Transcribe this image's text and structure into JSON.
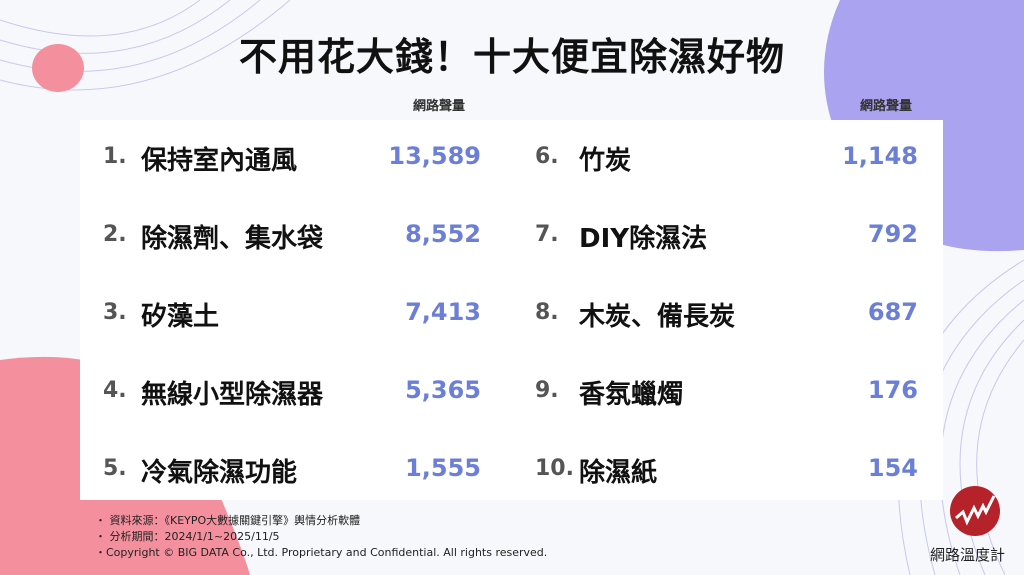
{
  "title": "不用花大錢！十大便宜除濕好物",
  "column_header": "網路聲量",
  "items": [
    {
      "rank": "1.",
      "name": "保持室內通風",
      "value": "13,589"
    },
    {
      "rank": "2.",
      "name": "除濕劑、集水袋",
      "value": "8,552"
    },
    {
      "rank": "3.",
      "name": "矽藻土",
      "value": "7,413"
    },
    {
      "rank": "4.",
      "name": "無線小型除濕器",
      "value": "5,365"
    },
    {
      "rank": "5.",
      "name": "冷氣除濕功能",
      "value": "1,555"
    },
    {
      "rank": "6.",
      "name": "竹炭",
      "value": "1,148"
    },
    {
      "rank": "7.",
      "name": "DIY除濕法",
      "value": "792"
    },
    {
      "rank": "8.",
      "name": "木炭、備長炭",
      "value": "687"
    },
    {
      "rank": "9.",
      "name": "香氛蠟燭",
      "value": "176"
    },
    {
      "rank": "10.",
      "name": "除濕紙",
      "value": "154"
    }
  ],
  "notes": [
    "・ 資料來源：《KEYPO大數據關鍵引擎》輿情分析軟體",
    "・ 分析期間：2024/1/1~2025/11/5",
    "・Copyright © BIG DATA Co., Ltd. Proprietary and Confidential. All rights reserved."
  ],
  "logo": {
    "text": "網路溫度計",
    "color": "#b5222a"
  },
  "colors": {
    "value": "#6b7fd7",
    "pink": "#f4909e",
    "purple": "#aaa3f0"
  }
}
